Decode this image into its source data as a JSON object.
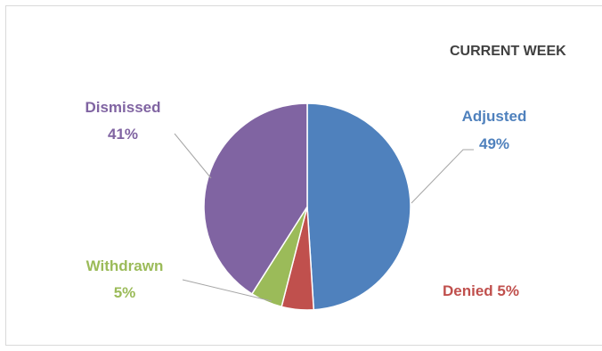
{
  "chart_data": {
    "type": "pie",
    "title": "CURRENT WEEK",
    "slices": [
      {
        "name": "Adjusted",
        "value": 49,
        "label": "Adjusted",
        "pct_label": "49%",
        "color": "#4f81bd"
      },
      {
        "name": "Denied",
        "value": 5,
        "label": "Denied 5%",
        "pct_label": "",
        "color": "#c0504d"
      },
      {
        "name": "Withdrawn",
        "value": 5,
        "label": "Withdrawn",
        "pct_label": "5%",
        "color": "#9bbb59"
      },
      {
        "name": "Dismissed",
        "value": 41,
        "label": "Dismissed",
        "pct_label": "41%",
        "color": "#8064a2"
      }
    ],
    "start_angle_deg": 0,
    "direction": "clockwise",
    "legend": "none",
    "data_labels": "outside-with-leader-lines"
  }
}
